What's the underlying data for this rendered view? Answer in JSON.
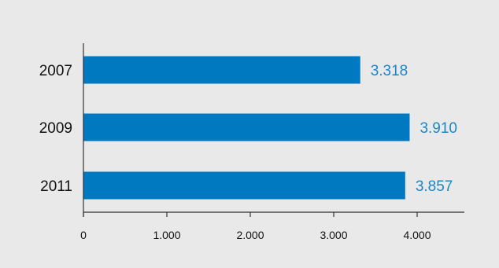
{
  "chart_data": {
    "type": "bar",
    "orientation": "horizontal",
    "categories": [
      "2007",
      "2009",
      "2011"
    ],
    "values": [
      3318,
      3910,
      3857
    ],
    "value_labels": [
      "3.318",
      "3.910",
      "3.857"
    ],
    "x_ticks": [
      0,
      1000,
      2000,
      3000,
      4000
    ],
    "x_tick_labels": [
      "0",
      "1.000",
      "2.000",
      "3.000",
      "4.000"
    ],
    "xlim": [
      0,
      4600
    ],
    "grid": false,
    "legend": "none",
    "colors": {
      "background": "#e9e9ea",
      "bar": "#0079c1",
      "value_label": "#1b86c8",
      "axis": "#333333",
      "text": "#111111"
    }
  }
}
